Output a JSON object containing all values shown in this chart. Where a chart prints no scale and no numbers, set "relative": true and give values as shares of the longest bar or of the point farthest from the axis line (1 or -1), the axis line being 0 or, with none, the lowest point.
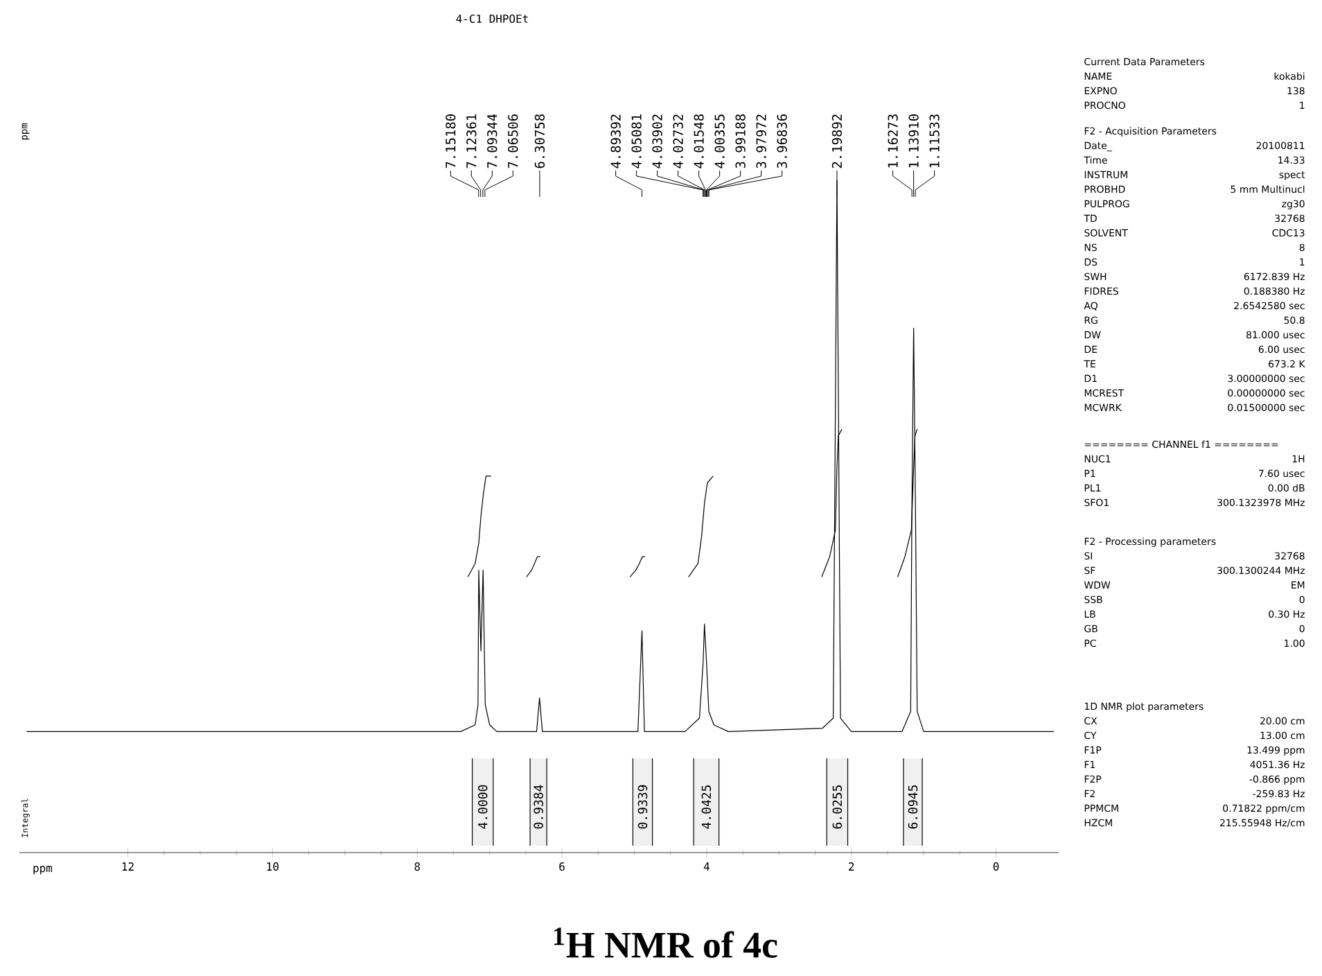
{
  "chart_data": [
    {
      "type": "line",
      "title": "4-C1 DHPOEt",
      "xlabel": "ppm",
      "ylabel": "ppm",
      "relative": true,
      "xlim": [
        13.499,
        -0.866
      ],
      "xticks": [
        12,
        10,
        8,
        6,
        4,
        2,
        0
      ],
      "series": [
        {
          "color": "#000000",
          "x": [
            13.4,
            7.4,
            7.2,
            7.16,
            7.15,
            7.12,
            7.09,
            7.06,
            7.0,
            6.9,
            6.35,
            6.31,
            6.27,
            4.95,
            4.894,
            4.86,
            4.3,
            4.1,
            4.05,
            4.03,
            4.0,
            3.97,
            3.9,
            3.7,
            2.4,
            2.25,
            2.199,
            2.15,
            2.0,
            1.3,
            1.18,
            1.163,
            1.139,
            1.115,
            1.09,
            1.0,
            -0.8
          ],
          "values": [
            0.18,
            0.18,
            0.19,
            0.22,
            0.42,
            0.3,
            0.42,
            0.22,
            0.19,
            0.18,
            0.18,
            0.23,
            0.18,
            0.18,
            0.33,
            0.18,
            0.18,
            0.2,
            0.28,
            0.34,
            0.28,
            0.21,
            0.19,
            0.18,
            0.185,
            0.2,
            1.0,
            0.2,
            0.18,
            0.18,
            0.21,
            0.51,
            0.78,
            0.53,
            0.21,
            0.18,
            0.18
          ]
        },
        {
          "color": "#000000",
          "x": [
            7.3,
            7.2,
            7.15,
            7.12,
            7.09,
            7.05,
            6.98
          ],
          "values": [
            0.41,
            0.43,
            0.46,
            0.5,
            0.53,
            0.56,
            0.56
          ]
        },
        {
          "color": "#000000",
          "x": [
            6.49,
            6.42,
            6.38,
            6.34,
            6.3
          ],
          "values": [
            0.41,
            0.42,
            0.43,
            0.44,
            0.44
          ]
        },
        {
          "color": "#000000",
          "x": [
            5.06,
            4.98,
            4.93,
            4.89,
            4.85
          ],
          "values": [
            0.41,
            0.42,
            0.43,
            0.44,
            0.44
          ]
        },
        {
          "color": "#000000",
          "x": [
            4.25,
            4.12,
            4.07,
            4.03,
            3.99,
            3.91
          ],
          "values": [
            0.41,
            0.43,
            0.47,
            0.52,
            0.55,
            0.56
          ]
        },
        {
          "color": "#000000",
          "x": [
            2.41,
            2.3,
            2.22,
            2.2,
            2.18,
            2.13
          ],
          "values": [
            0.41,
            0.44,
            0.48,
            0.57,
            0.62,
            0.63
          ]
        },
        {
          "color": "#000000",
          "x": [
            1.36,
            1.26,
            1.17,
            1.14,
            1.12,
            1.09
          ],
          "values": [
            0.41,
            0.44,
            0.48,
            0.57,
            0.62,
            0.63
          ]
        }
      ],
      "annotations": [
        "Integral",
        "$^{1}$H NMR of 4c",
        {
          "text": "7.15180",
          "x": 7.1518
        },
        {
          "text": "7.12361",
          "x": 7.12361
        },
        {
          "text": "7.09344",
          "x": 7.09344
        },
        {
          "text": "7.06506",
          "x": 7.06506
        },
        {
          "text": "6.30758",
          "x": 6.30758
        },
        {
          "text": "4.89392",
          "x": 4.89392
        },
        {
          "text": "4.05081",
          "x": 4.05081
        },
        {
          "text": "4.03902",
          "x": 4.03902
        },
        {
          "text": "4.02732",
          "x": 4.02732
        },
        {
          "text": "4.01548",
          "x": 4.01548
        },
        {
          "text": "4.00355",
          "x": 4.00355
        },
        {
          "text": "3.99188",
          "x": 3.99188
        },
        {
          "text": "3.97972",
          "x": 3.97972
        },
        {
          "text": "3.96836",
          "x": 3.96836
        },
        {
          "text": "2.19892",
          "x": 2.19892
        },
        {
          "text": "1.16273",
          "x": 1.16273
        },
        {
          "text": "1.13910",
          "x": 1.1391
        },
        {
          "text": "1.11533",
          "x": 1.11533
        }
      ],
      "bands": [
        {
          "axis": "x",
          "from": 7.24,
          "to": 6.95,
          "label": "4.0000",
          "color": "#f0f0f0"
        },
        {
          "axis": "x",
          "from": 6.44,
          "to": 6.21,
          "label": "0.9384",
          "color": "#f0f0f0"
        },
        {
          "axis": "x",
          "from": 5.02,
          "to": 4.75,
          "label": "0.9339",
          "color": "#f0f0f0"
        },
        {
          "axis": "x",
          "from": 4.18,
          "to": 3.83,
          "label": "4.0425",
          "color": "#f0f0f0"
        },
        {
          "axis": "x",
          "from": 2.34,
          "to": 2.05,
          "label": "6.0255",
          "color": "#f0f0f0"
        },
        {
          "axis": "x",
          "from": 1.28,
          "to": 1.02,
          "label": "6.0945",
          "color": "#f0f0f0"
        }
      ]
    },
    {
      "type": "other",
      "title": "Current Data Parameters",
      "annotations": [
        "NAME",
        "kokabi",
        "EXPNO",
        "138",
        "PROCNO",
        "1"
      ]
    },
    {
      "type": "other",
      "title": "F2 - Acquisition Parameters",
      "annotations": [
        "Date_",
        "20100811",
        "Time",
        "14.33",
        "INSTRUM",
        "spect",
        "PROBHD",
        "5 mm Multinucl",
        "PULPROG",
        "zg30",
        "TD",
        "32768",
        "SOLVENT",
        "CDC13",
        "NS",
        "8",
        "DS",
        "1",
        "SWH",
        "6172.839 Hz",
        "FIDRES",
        "0.188380 Hz",
        "AQ",
        "2.6542580 sec",
        "RG",
        "50.8",
        "DW",
        "81.000 usec",
        "DE",
        "6.00 usec",
        "TE",
        "673.2 K",
        "D1",
        "3.00000000 sec",
        "MCREST",
        "0.00000000 sec",
        "MCWRK",
        "0.01500000 sec"
      ]
    },
    {
      "type": "other",
      "title": "======== CHANNEL f1 ========",
      "annotations": [
        "NUC1",
        "1H",
        "P1",
        "7.60 usec",
        "PL1",
        "0.00 dB",
        "SFO1",
        "300.1323978 MHz"
      ]
    },
    {
      "type": "other",
      "title": "F2 - Processing parameters",
      "annotations": [
        "SI",
        "32768",
        "SF",
        "300.1300244 MHz",
        "WDW",
        "EM",
        "SSB",
        "0",
        "LB",
        "0.30 Hz",
        "GB",
        "0",
        "PC",
        "1.00"
      ]
    },
    {
      "type": "other",
      "title": "1D NMR plot parameters",
      "annotations": [
        "CX",
        "20.00 cm",
        "CY",
        "13.00 cm",
        "F1P",
        "13.499 ppm",
        "F1",
        "4051.36 Hz",
        "F2P",
        "-0.866 ppm",
        "F2",
        "-259.83 Hz",
        "PPMCM",
        "0.71822 ppm/cm",
        "HZCM",
        "215.55948 Hz/cm"
      ]
    }
  ]
}
